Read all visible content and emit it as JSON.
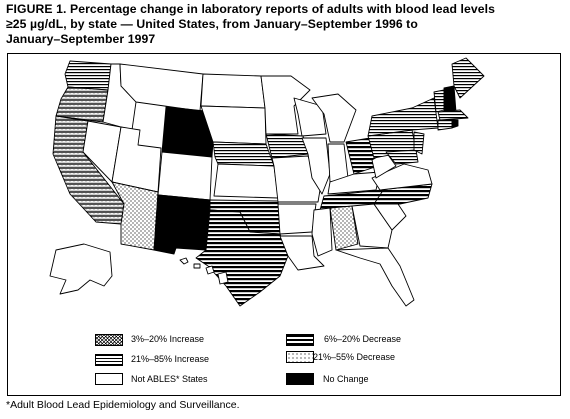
{
  "figure": {
    "title_lines": [
      "FIGURE 1. Percentage change in laboratory reports of adults with blood lead levels",
      "≥25 µg/dL, by state — United States, from January–September 1996 to",
      "January–September 1997"
    ]
  },
  "legend": {
    "items": [
      {
        "key": "inc3_20",
        "label": "3%–20% Increase",
        "pattern": "hatch-zigzag"
      },
      {
        "key": "dec6_20",
        "label": "6%–20% Decrease",
        "pattern": "stripes-thick"
      },
      {
        "key": "inc21_85",
        "label": "21%–85% Increase",
        "pattern": "stripes-thin"
      },
      {
        "key": "dec21_55",
        "label": "21%–55% Decrease",
        "pattern": "dots"
      },
      {
        "key": "not_ables",
        "label": "Not ABLES* States",
        "pattern": "white"
      },
      {
        "key": "no_change",
        "label": "No Change",
        "pattern": "black"
      }
    ]
  },
  "footnote": "*Adult Blood Lead Epidemiology and Surveillance.",
  "colors": {
    "ink": "#000000",
    "paper": "#ffffff"
  }
}
